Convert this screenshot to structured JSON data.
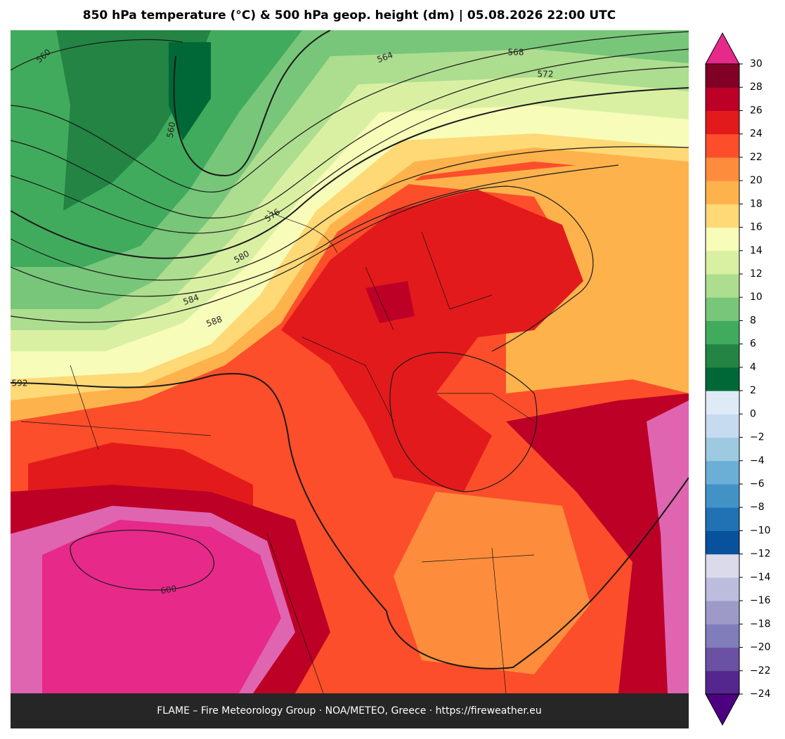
{
  "title": "850 hPa temperature (°C) & 500 hPa geop. height (dm)  |  05.08.2026 22:00 UTC",
  "footer": "FLAME – Fire Meteorology Group · NOA/METEO, Greece · https://fireweather.eu",
  "contour_labels": [
    560,
    560,
    564,
    568,
    572,
    576,
    580,
    584,
    588,
    592,
    600
  ],
  "colorbar": {
    "ticks": [
      {
        "value": -24,
        "label": "−24"
      },
      {
        "value": -22,
        "label": "−22"
      },
      {
        "value": -20,
        "label": "−20"
      },
      {
        "value": -18,
        "label": "−18"
      },
      {
        "value": -16,
        "label": "−16"
      },
      {
        "value": -14,
        "label": "−14"
      },
      {
        "value": -12,
        "label": "−12"
      },
      {
        "value": -10,
        "label": "−10"
      },
      {
        "value": -8,
        "label": "−8"
      },
      {
        "value": -6,
        "label": "−6"
      },
      {
        "value": -4,
        "label": "−4"
      },
      {
        "value": -2,
        "label": "−2"
      },
      0,
      2,
      4,
      6,
      8,
      10,
      12,
      14,
      16,
      18,
      20,
      22,
      24,
      26,
      28,
      30
    ],
    "colors": [
      "#54278f",
      "#6a51a3",
      "#807dba",
      "#9e9ac8",
      "#bcbddc",
      "#dadaeb",
      "#08519c",
      "#2171b5",
      "#4292c6",
      "#6baed6",
      "#9ecae1",
      "#c6dbef",
      "#deebf7",
      "#006837",
      "#238443",
      "#41ab5d",
      "#78c679",
      "#addd8e",
      "#d9f0a3",
      "#f7fcb9",
      "#fed976",
      "#feb24c",
      "#fd8d3c",
      "#fc4e2a",
      "#e31a1c",
      "#bd0026",
      "#800026",
      "#df65b0"
    ],
    "under_color": "#4d0082",
    "over_color": "#e7298a"
  }
}
